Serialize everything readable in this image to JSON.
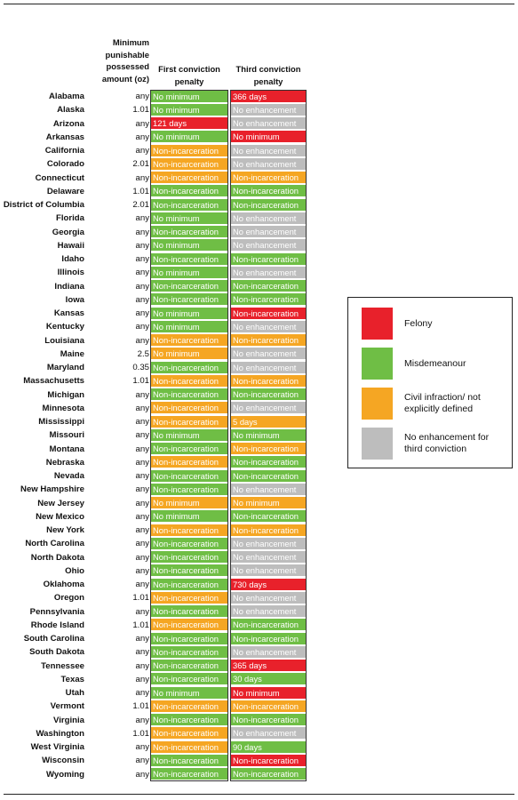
{
  "chart_data": {
    "type": "table",
    "columns": [
      "Minimum punishable possessed amount (oz)",
      "First conviction penalty",
      "Third conviction penalty"
    ],
    "rows": [
      {
        "state": "Alabama",
        "amount": "any",
        "first": "No minimum",
        "first_cat": "misdemeanour",
        "third": "366 days",
        "third_cat": "felony"
      },
      {
        "state": "Alaska",
        "amount": "1.01",
        "first": "No minimum",
        "first_cat": "misdemeanour",
        "third": "No enhancement",
        "third_cat": "none"
      },
      {
        "state": "Arizona",
        "amount": "any",
        "first": "121 days",
        "first_cat": "felony",
        "third": "No enhancement",
        "third_cat": "none"
      },
      {
        "state": "Arkansas",
        "amount": "any",
        "first": "No minimum",
        "first_cat": "misdemeanour",
        "third": "No minimum",
        "third_cat": "felony"
      },
      {
        "state": "California",
        "amount": "any",
        "first": "Non-incarceration",
        "first_cat": "civil",
        "third": "No enhancement",
        "third_cat": "none"
      },
      {
        "state": "Colorado",
        "amount": "2.01",
        "first": "Non-incarceration",
        "first_cat": "civil",
        "third": "No enhancement",
        "third_cat": "none"
      },
      {
        "state": "Connecticut",
        "amount": "any",
        "first": "Non-incarceration",
        "first_cat": "civil",
        "third": "Non-incarceration",
        "third_cat": "civil"
      },
      {
        "state": "Delaware",
        "amount": "1.01",
        "first": "Non-incarceration",
        "first_cat": "misdemeanour",
        "third": "Non-incarceration",
        "third_cat": "misdemeanour"
      },
      {
        "state": "District of Columbia",
        "amount": "2.01",
        "first": "Non-incarceration",
        "first_cat": "misdemeanour",
        "third": "Non-incarceration",
        "third_cat": "misdemeanour"
      },
      {
        "state": "Florida",
        "amount": "any",
        "first": "No minimum",
        "first_cat": "misdemeanour",
        "third": "No enhancement",
        "third_cat": "none"
      },
      {
        "state": "Georgia",
        "amount": "any",
        "first": "Non-incarceration",
        "first_cat": "misdemeanour",
        "third": "No enhancement",
        "third_cat": "none"
      },
      {
        "state": "Hawaii",
        "amount": "any",
        "first": "No minimum",
        "first_cat": "misdemeanour",
        "third": "No enhancement",
        "third_cat": "none"
      },
      {
        "state": "Idaho",
        "amount": "any",
        "first": "Non-incarceration",
        "first_cat": "misdemeanour",
        "third": "Non-incarceration",
        "third_cat": "misdemeanour"
      },
      {
        "state": "Illinois",
        "amount": "any",
        "first": "No minimum",
        "first_cat": "misdemeanour",
        "third": "No enhancement",
        "third_cat": "none"
      },
      {
        "state": "Indiana",
        "amount": "any",
        "first": "Non-incarceration",
        "first_cat": "misdemeanour",
        "third": "Non-incarceration",
        "third_cat": "misdemeanour"
      },
      {
        "state": "Iowa",
        "amount": "any",
        "first": "Non-incarceration",
        "first_cat": "misdemeanour",
        "third": "Non-incarceration",
        "third_cat": "misdemeanour"
      },
      {
        "state": "Kansas",
        "amount": "any",
        "first": "No minimum",
        "first_cat": "misdemeanour",
        "third": "Non-incarceration",
        "third_cat": "felony"
      },
      {
        "state": "Kentucky",
        "amount": "any",
        "first": "No minimum",
        "first_cat": "misdemeanour",
        "third": "No enhancement",
        "third_cat": "none"
      },
      {
        "state": "Louisiana",
        "amount": "any",
        "first": "Non-incarceration",
        "first_cat": "civil",
        "third": "Non-incarceration",
        "third_cat": "civil"
      },
      {
        "state": "Maine",
        "amount": "2.5",
        "first": "No minimum",
        "first_cat": "civil",
        "third": "No enhancement",
        "third_cat": "none"
      },
      {
        "state": "Maryland",
        "amount": "0.35",
        "first": "Non-incarceration",
        "first_cat": "misdemeanour",
        "third": "No enhancement",
        "third_cat": "none"
      },
      {
        "state": "Massachusetts",
        "amount": "1.01",
        "first": "Non-incarceration",
        "first_cat": "civil",
        "third": "Non-incarceration",
        "third_cat": "civil"
      },
      {
        "state": "Michigan",
        "amount": "any",
        "first": "Non-incarceration",
        "first_cat": "misdemeanour",
        "third": "Non-incarceration",
        "third_cat": "misdemeanour"
      },
      {
        "state": "Minnesota",
        "amount": "any",
        "first": "Non-incarceration",
        "first_cat": "civil",
        "third": "No enhancement",
        "third_cat": "none"
      },
      {
        "state": "Mississippi",
        "amount": "any",
        "first": "Non-incarceration",
        "first_cat": "civil",
        "third": "5 days",
        "third_cat": "civil"
      },
      {
        "state": "Missouri",
        "amount": "any",
        "first": "No minimum",
        "first_cat": "misdemeanour",
        "third": "No minimum",
        "third_cat": "misdemeanour"
      },
      {
        "state": "Montana",
        "amount": "any",
        "first": "Non-incarceration",
        "first_cat": "misdemeanour",
        "third": "Non-incarceration",
        "third_cat": "civil"
      },
      {
        "state": "Nebraska",
        "amount": "any",
        "first": "Non-incarceration",
        "first_cat": "civil",
        "third": "Non-incarceration",
        "third_cat": "misdemeanour"
      },
      {
        "state": "Nevada",
        "amount": "any",
        "first": "Non-incarceration",
        "first_cat": "misdemeanour",
        "third": "Non-incarceration",
        "third_cat": "misdemeanour"
      },
      {
        "state": "New Hampshire",
        "amount": "any",
        "first": "Non-incarceration",
        "first_cat": "misdemeanour",
        "third": "No enhancement",
        "third_cat": "none"
      },
      {
        "state": "New Jersey",
        "amount": "any",
        "first": "No minimum",
        "first_cat": "civil",
        "third": "No minimum",
        "third_cat": "civil"
      },
      {
        "state": "New Mexico",
        "amount": "any",
        "first": "No minimum",
        "first_cat": "misdemeanour",
        "third": "Non-incarceration",
        "third_cat": "misdemeanour"
      },
      {
        "state": "New York",
        "amount": "any",
        "first": "Non-incarceration",
        "first_cat": "civil",
        "third": "Non-incarceration",
        "third_cat": "civil"
      },
      {
        "state": "North Carolina",
        "amount": "any",
        "first": "Non-incarceration",
        "first_cat": "misdemeanour",
        "third": "No enhancement",
        "third_cat": "none"
      },
      {
        "state": "North Dakota",
        "amount": "any",
        "first": "Non-incarceration",
        "first_cat": "misdemeanour",
        "third": "No enhancement",
        "third_cat": "none"
      },
      {
        "state": "Ohio",
        "amount": "any",
        "first": "Non-incarceration",
        "first_cat": "misdemeanour",
        "third": "No enhancement",
        "third_cat": "none"
      },
      {
        "state": "Oklahoma",
        "amount": "any",
        "first": "Non-incarceration",
        "first_cat": "misdemeanour",
        "third": "730 days",
        "third_cat": "felony"
      },
      {
        "state": "Oregon",
        "amount": "1.01",
        "first": "Non-incarceration",
        "first_cat": "civil",
        "third": "No enhancement",
        "third_cat": "none"
      },
      {
        "state": "Pennsylvania",
        "amount": "any",
        "first": "Non-incarceration",
        "first_cat": "misdemeanour",
        "third": "No enhancement",
        "third_cat": "none"
      },
      {
        "state": "Rhode Island",
        "amount": "1.01",
        "first": "Non-incarceration",
        "first_cat": "civil",
        "third": "Non-incarceration",
        "third_cat": "misdemeanour"
      },
      {
        "state": "South Carolina",
        "amount": "any",
        "first": "Non-incarceration",
        "first_cat": "misdemeanour",
        "third": "Non-incarceration",
        "third_cat": "misdemeanour"
      },
      {
        "state": "South Dakota",
        "amount": "any",
        "first": "Non-incarceration",
        "first_cat": "misdemeanour",
        "third": "No enhancement",
        "third_cat": "none"
      },
      {
        "state": "Tennessee",
        "amount": "any",
        "first": "Non-incarceration",
        "first_cat": "misdemeanour",
        "third": "365 days",
        "third_cat": "felony"
      },
      {
        "state": "Texas",
        "amount": "any",
        "first": "Non-incarceration",
        "first_cat": "misdemeanour",
        "third": "30 days",
        "third_cat": "misdemeanour"
      },
      {
        "state": "Utah",
        "amount": "any",
        "first": "No minimum",
        "first_cat": "misdemeanour",
        "third": "No minimum",
        "third_cat": "felony"
      },
      {
        "state": "Vermont",
        "amount": "1.01",
        "first": "Non-incarceration",
        "first_cat": "civil",
        "third": "Non-incarceration",
        "third_cat": "civil"
      },
      {
        "state": "Virginia",
        "amount": "any",
        "first": "Non-incarceration",
        "first_cat": "misdemeanour",
        "third": "Non-incarceration",
        "third_cat": "misdemeanour"
      },
      {
        "state": "Washington",
        "amount": "1.01",
        "first": "Non-incarceration",
        "first_cat": "civil",
        "third": "No enhancement",
        "third_cat": "none"
      },
      {
        "state": "West Virginia",
        "amount": "any",
        "first": "Non-incarceration",
        "first_cat": "civil",
        "third": "90 days",
        "third_cat": "misdemeanour"
      },
      {
        "state": "Wisconsin",
        "amount": "any",
        "first": "Non-incarceration",
        "first_cat": "misdemeanour",
        "third": "Non-incarceration",
        "third_cat": "felony"
      },
      {
        "state": "Wyoming",
        "amount": "any",
        "first": "Non-incarceration",
        "first_cat": "misdemeanour",
        "third": "Non-incarceration",
        "third_cat": "misdemeanour"
      }
    ],
    "legend": [
      {
        "key": "felony",
        "label": "Felony",
        "color": "#e8212b"
      },
      {
        "key": "misdemeanour",
        "label": "Misdemeanour",
        "color": "#6fbe45"
      },
      {
        "key": "civil",
        "label": "Civil infraction/ not explicitly defined",
        "color": "#f5a623"
      },
      {
        "key": "none",
        "label": "No enhancement for third conviction",
        "color": "#bdbdbd"
      }
    ],
    "legend_position": "right"
  }
}
